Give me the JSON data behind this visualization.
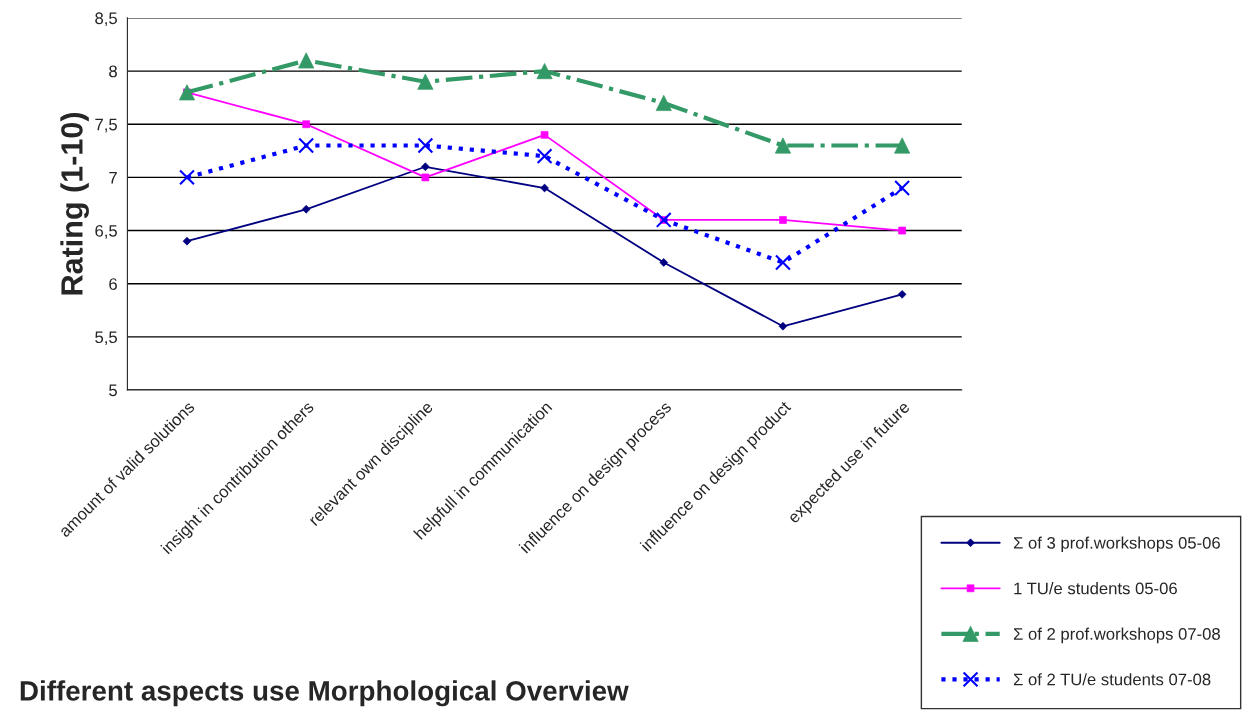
{
  "chart_data": {
    "type": "line",
    "xlabel": "Different aspects use Morphological Overview",
    "ylabel": "Rating (1-10)",
    "categories": [
      "amount of valid solutions",
      "insight in contribution others",
      "relevant own discipline",
      "helpfull in communication",
      "influence on design process",
      "influence on design product",
      "expected use in future"
    ],
    "series": [
      {
        "name": "Σ of 3 prof.workshops 05-06",
        "color": "#000080",
        "marker": "diamond",
        "line_style": "solid",
        "values": [
          6.4,
          6.7,
          7.1,
          6.9,
          6.2,
          5.6,
          5.9
        ]
      },
      {
        "name": "1 TU/e students 05-06",
        "color": "#ff00ff",
        "marker": "square",
        "line_style": "solid",
        "values": [
          7.8,
          7.5,
          7.0,
          7.4,
          6.6,
          6.6,
          6.5
        ]
      },
      {
        "name": "Σ of 2 prof.workshops 07-08",
        "color": "#339966",
        "marker": "triangle",
        "line_style": "dashdot",
        "values": [
          7.8,
          8.1,
          7.9,
          8.0,
          7.7,
          7.3,
          7.3
        ]
      },
      {
        "name": "Σ of 2 TU/e students 07-08",
        "color": "#0000ff",
        "marker": "cross",
        "line_style": "dotted",
        "values": [
          7.0,
          7.3,
          7.3,
          7.2,
          6.6,
          6.2,
          6.9
        ]
      }
    ],
    "ylim": [
      5,
      8.5
    ],
    "yticks": [
      5,
      {
        "value": 5.5,
        "label": "5,5"
      },
      6,
      {
        "value": 6.5,
        "label": "6,5"
      },
      7,
      {
        "value": 7.5,
        "label": "7,5"
      },
      8,
      {
        "value": 8.5,
        "label": "8,5"
      }
    ],
    "grid": "y",
    "legend": "bottom right"
  }
}
